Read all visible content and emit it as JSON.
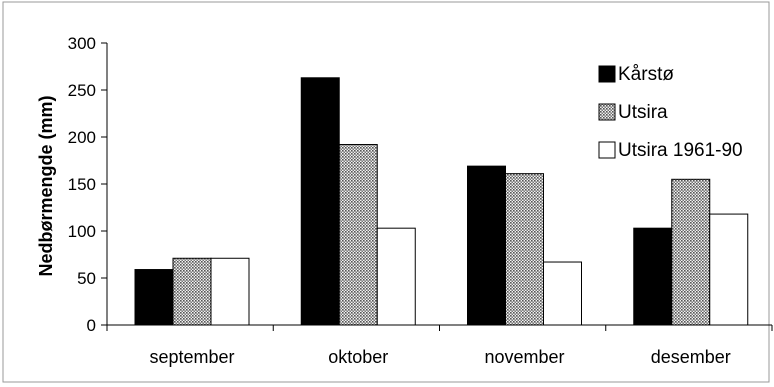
{
  "chart_data": {
    "type": "bar",
    "ylabel": "Nedbørmengde (mm)",
    "xlabel": "",
    "ylim": [
      0,
      300
    ],
    "yticks": [
      0,
      50,
      100,
      150,
      200,
      250,
      300
    ],
    "categories": [
      "september",
      "oktober",
      "november",
      "desember"
    ],
    "series": [
      {
        "name": "Kårstø",
        "values": [
          59,
          263,
          169,
          103
        ],
        "color": "#000000",
        "pattern": "solid"
      },
      {
        "name": "Utsira",
        "values": [
          71,
          192,
          161,
          155
        ],
        "color": "#b8b8b8",
        "pattern": "dotted"
      },
      {
        "name": "Utsira 1961-90",
        "values": [
          71,
          103,
          67,
          118
        ],
        "color": "#ffffff",
        "pattern": "none"
      }
    ],
    "legend_position": "top-right",
    "grid": false
  }
}
